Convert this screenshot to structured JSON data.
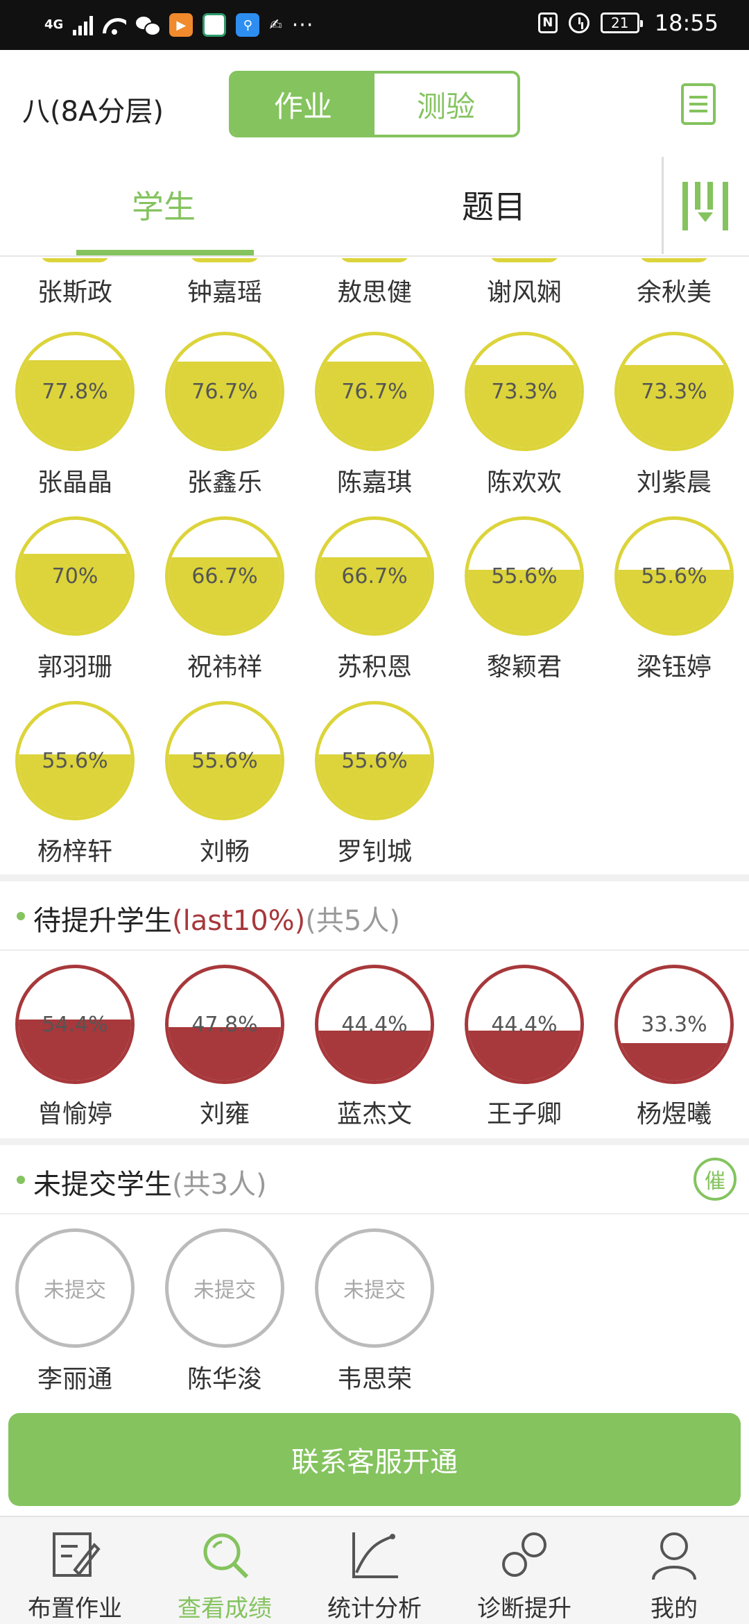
{
  "status_bar": {
    "network": "4G",
    "time": "18:55",
    "battery": "21",
    "nfc": "N",
    "more": "···"
  },
  "header": {
    "class_name": "八(8A分层)",
    "segments": [
      {
        "label": "作业",
        "active": true
      },
      {
        "label": "测验",
        "active": false
      }
    ]
  },
  "tabs": [
    {
      "label": "学生",
      "active": true
    },
    {
      "label": "题目",
      "active": false
    }
  ],
  "partial_row": {
    "names": [
      "张斯政",
      "钟嘉瑶",
      "敖思健",
      "谢风娴",
      "余秋美"
    ]
  },
  "top_students": [
    {
      "name": "张晶晶",
      "score": "77.8%",
      "fill": 0.778
    },
    {
      "name": "张鑫乐",
      "score": "76.7%",
      "fill": 0.767
    },
    {
      "name": "陈嘉琪",
      "score": "76.7%",
      "fill": 0.767
    },
    {
      "name": "陈欢欢",
      "score": "73.3%",
      "fill": 0.733
    },
    {
      "name": "刘紫晨",
      "score": "73.3%",
      "fill": 0.733
    },
    {
      "name": "郭羽珊",
      "score": "70%",
      "fill": 0.7
    },
    {
      "name": "祝祎祥",
      "score": "66.7%",
      "fill": 0.667
    },
    {
      "name": "苏积恩",
      "score": "66.7%",
      "fill": 0.667
    },
    {
      "name": "黎颖君",
      "score": "55.6%",
      "fill": 0.556
    },
    {
      "name": "梁钰婷",
      "score": "55.6%",
      "fill": 0.556
    },
    {
      "name": "杨梓轩",
      "score": "55.6%",
      "fill": 0.556
    },
    {
      "name": "刘畅",
      "score": "55.6%",
      "fill": 0.556
    },
    {
      "name": "罗钊城",
      "score": "55.6%",
      "fill": 0.556
    }
  ],
  "improve_section": {
    "title": "待提升学生",
    "tag": "(last10%)",
    "count": "(共5人)"
  },
  "improve_students": [
    {
      "name": "曾愉婷",
      "score": "54.4%",
      "fill": 0.544
    },
    {
      "name": "刘雍",
      "score": "47.8%",
      "fill": 0.478
    },
    {
      "name": "蓝杰文",
      "score": "44.4%",
      "fill": 0.444
    },
    {
      "name": "王子卿",
      "score": "44.4%",
      "fill": 0.444
    },
    {
      "name": "杨煜曦",
      "score": "33.3%",
      "fill": 0.333
    }
  ],
  "unsubmitted_section": {
    "title": "未提交学生",
    "count": "(共3人)",
    "urge_label": "催"
  },
  "unsubmitted_students": [
    {
      "name": "李丽通",
      "status": "未提交"
    },
    {
      "name": "陈华浚",
      "status": "未提交"
    },
    {
      "name": "韦思荣",
      "status": "未提交"
    }
  ],
  "cta_label": "联系客服开通",
  "bottom_nav": [
    {
      "label": "布置作业",
      "icon": "edit-icon",
      "active": false
    },
    {
      "label": "查看成绩",
      "icon": "search-icon",
      "active": true
    },
    {
      "label": "统计分析",
      "icon": "chart-icon",
      "active": false
    },
    {
      "label": "诊断提升",
      "icon": "diagnose-icon",
      "active": false
    },
    {
      "label": "我的",
      "icon": "person-icon",
      "active": false
    }
  ],
  "colors": {
    "accent": "#84c35e",
    "top": "#dcd43a",
    "low": "#a7383b",
    "none": "#bbbbbb"
  }
}
